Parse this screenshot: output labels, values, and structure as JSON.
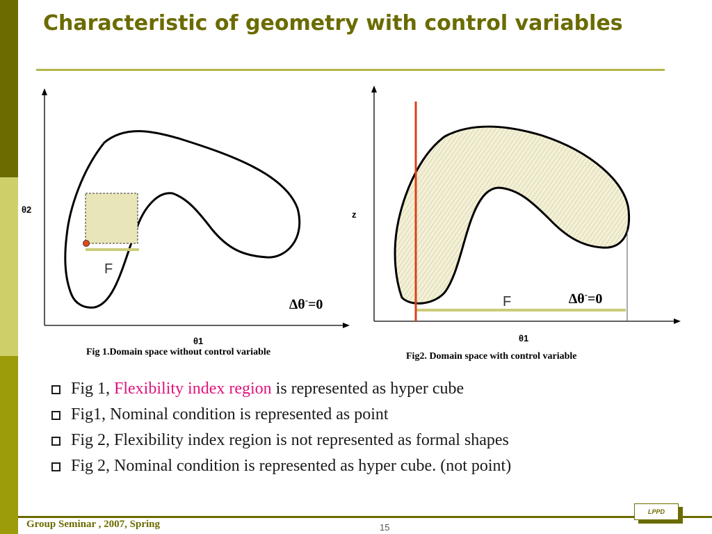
{
  "slide": {
    "title": "Characteristic of geometry with control variables",
    "footer_left": "Group Seminar , 2007, Spring",
    "page_number": "15",
    "logo_text": "LPPD"
  },
  "colors": {
    "sidebar_dark": "#6b6b00",
    "sidebar_light": "#cfcf6a",
    "sidebar_mid": "#9c9c0a",
    "title": "#6b6b00",
    "highlight": "#e0137b",
    "region_fill": "#f3f0d6",
    "base_line": "#cccc7a",
    "control_line": "#d84315",
    "nominal_point": "#e64a19"
  },
  "fig1": {
    "y_label": "θ2",
    "x_label": "θ1",
    "region_label": "F",
    "delta_label": "∆θ",
    "delta_sup": "-",
    "delta_eq": "=0",
    "caption": "Fig 1.Domain space without control variable"
  },
  "fig2": {
    "y_label": "z",
    "x_label": "θ1",
    "region_label": "F",
    "delta_label": "∆θ",
    "delta_sup": "-",
    "delta_eq": "=0",
    "caption": "Fig2. Domain space with control variable"
  },
  "bullets": [
    {
      "pre": "Fig 1, ",
      "highlight": "Flexibility index region",
      "post": " is represented as hyper cube"
    },
    {
      "pre": "Fig1, Nominal condition is represented as point",
      "highlight": "",
      "post": ""
    },
    {
      "pre": "Fig 2, Flexibility index region is not represented as formal shapes",
      "highlight": "",
      "post": ""
    },
    {
      "pre": "Fig 2, Nominal condition is represented as hyper cube. (not point)",
      "highlight": "",
      "post": ""
    }
  ]
}
